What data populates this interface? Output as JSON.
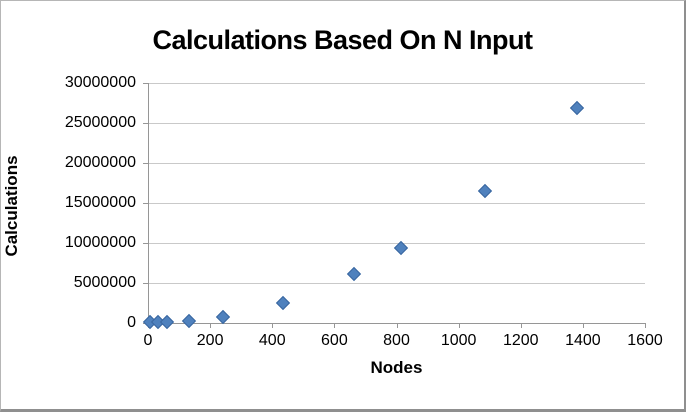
{
  "chart": {
    "title": "Calculations Based On N Input",
    "x_axis_title": "Nodes",
    "y_axis_title": "Calculations"
  },
  "chart_data": {
    "type": "scatter",
    "title": "Calculations Based On N Input",
    "xlabel": "Nodes",
    "ylabel": "Calculations",
    "xlim": [
      0,
      1600
    ],
    "ylim": [
      0,
      30000000
    ],
    "x_tick_step": 200,
    "y_tick_step": 5000000,
    "x_tick_labels": [
      "0",
      "200",
      "400",
      "600",
      "800",
      "1000",
      "1200",
      "1400",
      "1600"
    ],
    "y_tick_labels": [
      "0",
      "5000000",
      "10000000",
      "15000000",
      "20000000",
      "25000000",
      "30000000"
    ],
    "grid": true,
    "legend": false,
    "marker_shape": "diamond",
    "marker_color": "#4f81bd",
    "marker_border_color": "#3a67a0",
    "gridline_color": "#c9c9c9",
    "axis_color": "#969696",
    "series": [
      {
        "name": "Calculations",
        "x": [
          8,
          32,
          60,
          132,
          242,
          433,
          662,
          815,
          1084,
          1380
        ],
        "y": [
          5000,
          20000,
          60000,
          250000,
          700000,
          2500000,
          6100000,
          9300000,
          16500000,
          26900000
        ]
      }
    ]
  }
}
